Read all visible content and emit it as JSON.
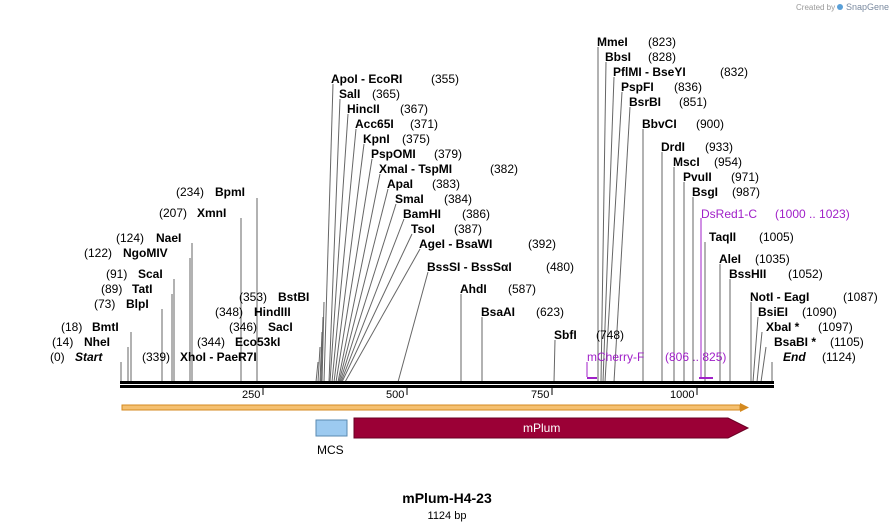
{
  "brand": {
    "created_by": "Created by",
    "name": "SnapGene"
  },
  "map": {
    "title": "mPlum-H4-23",
    "length": "1124 bp"
  },
  "ticks": [
    "250",
    "500",
    "750",
    "1000"
  ],
  "sites": [
    {
      "pos": "(0)",
      "name": "Start",
      "italic": true
    },
    {
      "pos": "(14)",
      "name": "NheI"
    },
    {
      "pos": "(18)",
      "name": "BmtI"
    },
    {
      "pos": "(73)",
      "name": "BlpI"
    },
    {
      "pos": "(89)",
      "name": "TatI"
    },
    {
      "pos": "(91)",
      "name": "ScaI"
    },
    {
      "pos": "(122)",
      "name": "NgoMIV"
    },
    {
      "pos": "(124)",
      "name": "NaeI"
    },
    {
      "pos": "(207)",
      "name": "XmnI"
    },
    {
      "pos": "(234)",
      "name": "BpmI"
    },
    {
      "pos": "(339)",
      "name": "XhoI - PaeR7I"
    },
    {
      "pos": "(344)",
      "name": "Eco53kI"
    },
    {
      "pos": "(346)",
      "name": "SacI"
    },
    {
      "pos": "(348)",
      "name": "HindIII"
    },
    {
      "pos": "(353)",
      "name": "BstBI"
    },
    {
      "pos": "(355)",
      "name": "ApoI - EcoRI"
    },
    {
      "pos": "(365)",
      "name": "SalI"
    },
    {
      "pos": "(367)",
      "name": "HincII"
    },
    {
      "pos": "(371)",
      "name": "Acc65I"
    },
    {
      "pos": "(375)",
      "name": "KpnI"
    },
    {
      "pos": "(379)",
      "name": "PspOMI"
    },
    {
      "pos": "(382)",
      "name": "XmaI - TspMI"
    },
    {
      "pos": "(383)",
      "name": "ApaI"
    },
    {
      "pos": "(384)",
      "name": "SmaI"
    },
    {
      "pos": "(386)",
      "name": "BamHI"
    },
    {
      "pos": "(387)",
      "name": "TsoI"
    },
    {
      "pos": "(392)",
      "name": "AgeI - BsaWI"
    },
    {
      "pos": "(480)",
      "name": "BssSI - BssSαI"
    },
    {
      "pos": "(587)",
      "name": "AhdI"
    },
    {
      "pos": "(623)",
      "name": "BsaAI"
    },
    {
      "pos": "(748)",
      "name": "SbfI"
    },
    {
      "pos": "(823)",
      "name": "MmeI"
    },
    {
      "pos": "(828)",
      "name": "BbsI"
    },
    {
      "pos": "(832)",
      "name": "PflMI - BseYI"
    },
    {
      "pos": "(836)",
      "name": "PspFI"
    },
    {
      "pos": "(851)",
      "name": "BsrBI"
    },
    {
      "pos": "(900)",
      "name": "BbvCI"
    },
    {
      "pos": "(933)",
      "name": "DrdI"
    },
    {
      "pos": "(954)",
      "name": "MscI"
    },
    {
      "pos": "(971)",
      "name": "PvuII"
    },
    {
      "pos": "(987)",
      "name": "BsgI"
    },
    {
      "pos": "(1005)",
      "name": "TaqII"
    },
    {
      "pos": "(1035)",
      "name": "AleI"
    },
    {
      "pos": "(1052)",
      "name": "BssHII"
    },
    {
      "pos": "(1087)",
      "name": "NotI - EagI"
    },
    {
      "pos": "(1090)",
      "name": "BsiEI"
    },
    {
      "pos": "(1097)",
      "name": "XbaI *"
    },
    {
      "pos": "(1105)",
      "name": "BsaBI *"
    },
    {
      "pos": "(1124)",
      "name": "End",
      "italic": true
    }
  ],
  "primers": [
    {
      "name": "mCherry-F",
      "range": "(806 .. 825)"
    },
    {
      "name": "DsRed1-C",
      "range": "(1000 .. 1023)"
    }
  ],
  "features": [
    {
      "name": "MCS",
      "color": "#9ccaf0"
    },
    {
      "name": "mPlum",
      "color": "#9b0036"
    }
  ],
  "colors": {
    "primer": "#a020c8",
    "orf": "#f0a030",
    "backbone": "#000000"
  }
}
